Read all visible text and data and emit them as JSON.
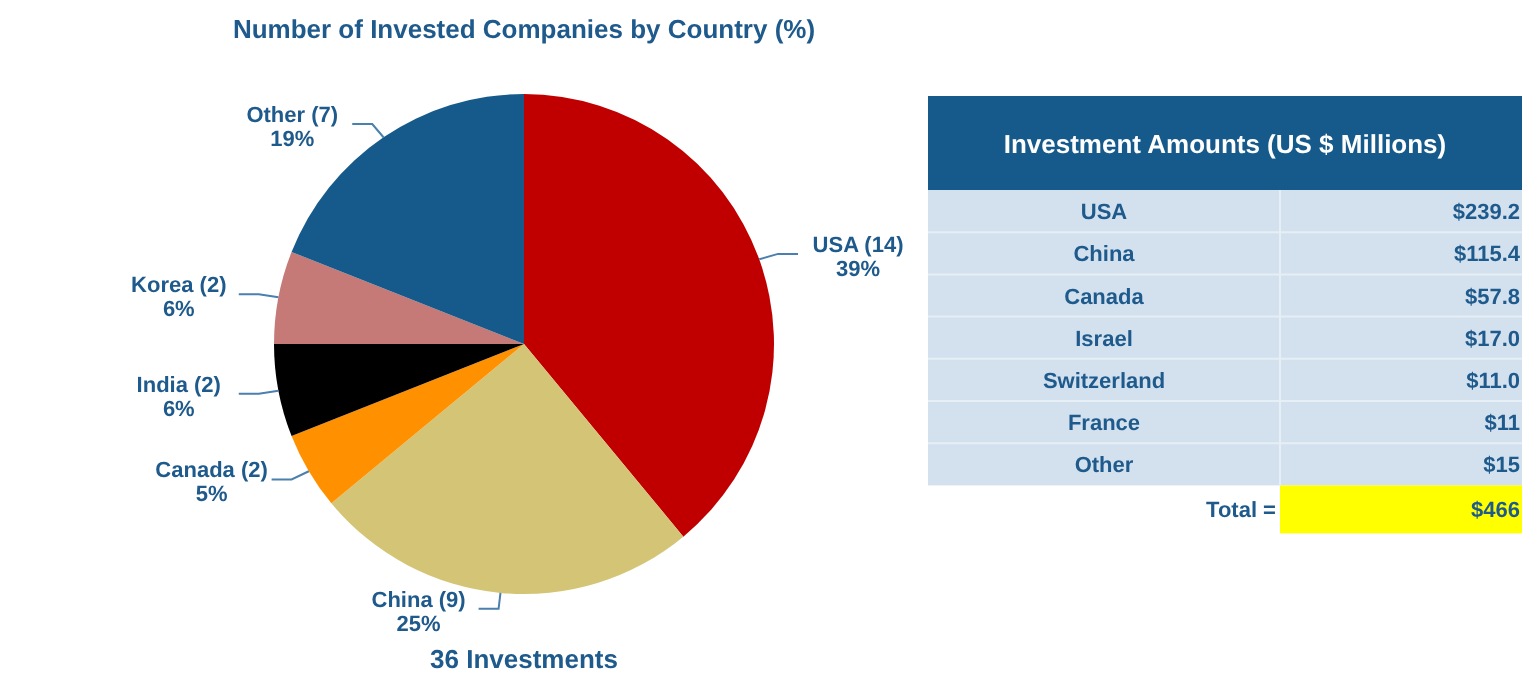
{
  "chart_data": [
    {
      "type": "pie",
      "title": "Number of Invested Companies by Country (%)",
      "categories": [
        "USA (14)",
        "China (9)",
        "Canada (2)",
        "India (2)",
        "Korea (2)",
        "Other  (7)"
      ],
      "values": [
        39,
        25,
        5,
        6,
        6,
        19
      ],
      "value_labels": [
        "39%",
        "25%",
        "5%",
        "6%",
        "6%",
        "19%"
      ],
      "colors": [
        "#c00000",
        "#d4c576",
        "#ff9000",
        "#000000",
        "#c57a78",
        "#155a8a"
      ],
      "annotations": [
        "36 Investments"
      ]
    },
    {
      "type": "other",
      "title": "Investment Amounts (US $ Millions)",
      "categories": [
        "USA",
        "China",
        "Canada",
        "Israel",
        "Switzerland",
        "France",
        "Other"
      ],
      "value_labels": [
        "$239.2",
        "$115.4",
        "$57.8",
        "$17.0",
        "$11.0",
        "$11",
        "$15"
      ],
      "annotations": [
        "Total ="
      ],
      "totals": [
        "$466"
      ]
    }
  ]
}
